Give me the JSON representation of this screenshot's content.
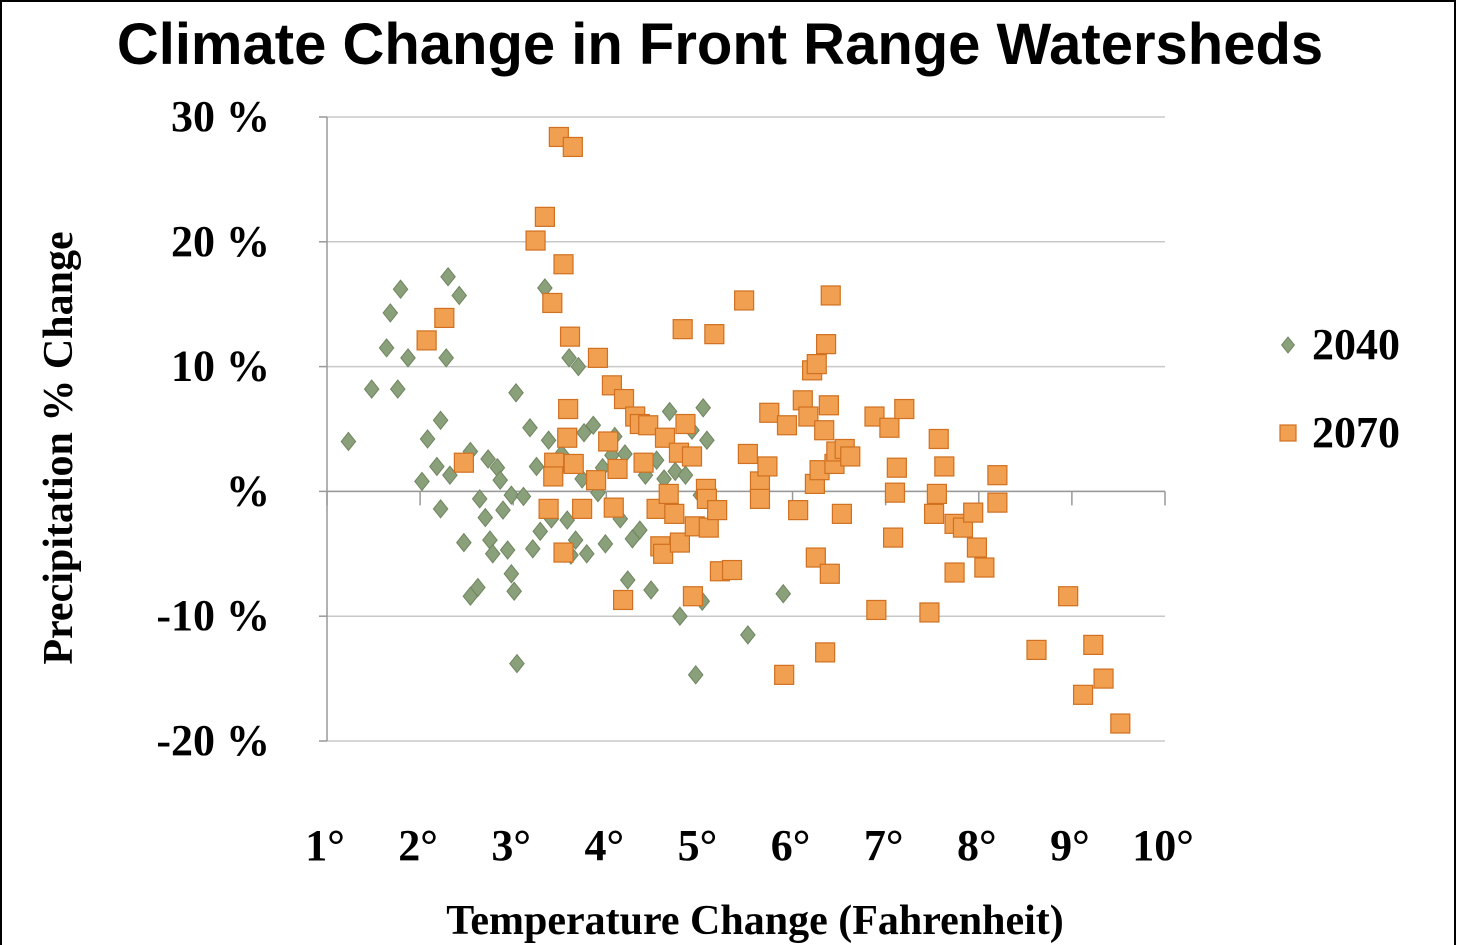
{
  "chart_data": {
    "type": "scatter",
    "title": "Climate Change in Front Range Watersheds",
    "x_label": "Temperature Change (Fahrenheit)",
    "y_label": "Precipitation % Change",
    "xlim": [
      1,
      10
    ],
    "ylim": [
      -20,
      30
    ],
    "xticks": [
      {
        "value": 1,
        "label": "1°"
      },
      {
        "value": 2,
        "label": "2°"
      },
      {
        "value": 3,
        "label": "3°"
      },
      {
        "value": 4,
        "label": "4°"
      },
      {
        "value": 5,
        "label": "5°"
      },
      {
        "value": 6,
        "label": "6°"
      },
      {
        "value": 7,
        "label": "7°"
      },
      {
        "value": 8,
        "label": "8°"
      },
      {
        "value": 9,
        "label": "9°"
      },
      {
        "value": 10,
        "label": "10°"
      }
    ],
    "yticks": [
      {
        "value": 30,
        "label": "30 %"
      },
      {
        "value": 20,
        "label": "20 %"
      },
      {
        "value": 10,
        "label": "10 %"
      },
      {
        "value": 0,
        "label": "%"
      },
      {
        "value": -10,
        "label": "-10 %"
      },
      {
        "value": -20,
        "label": "-20 %"
      }
    ],
    "grid": true,
    "legend": "right",
    "series": [
      {
        "name": "2040",
        "color": "#8aa07a",
        "marker": "diamond",
        "x": [
          1.23,
          1.48,
          1.68,
          1.64,
          1.76,
          1.79,
          1.87,
          2.02,
          2.08,
          2.18,
          2.22,
          2.22,
          2.28,
          2.3,
          2.42,
          2.32,
          2.47,
          2.54,
          2.54,
          2.62,
          2.64,
          2.7,
          2.73,
          2.75,
          2.78,
          2.83,
          2.86,
          2.89,
          2.94,
          2.98,
          2.98,
          3.01,
          3.03,
          3.04,
          3.11,
          3.18,
          3.21,
          3.25,
          3.29,
          3.34,
          3.38,
          3.41,
          3.47,
          3.52,
          3.58,
          3.6,
          3.62,
          3.67,
          3.7,
          3.74,
          3.76,
          3.79,
          3.86,
          3.91,
          3.96,
          3.99,
          4.06,
          4.09,
          4.15,
          4.2,
          4.23,
          4.28,
          4.36,
          4.42,
          4.48,
          4.54,
          4.62,
          4.68,
          4.74,
          4.79,
          4.85,
          4.92,
          4.96,
          5.01,
          5.03,
          5.04,
          5.52,
          5.9,
          5.08
        ],
        "values": [
          4.0,
          8.2,
          14.3,
          11.5,
          8.2,
          16.2,
          10.7,
          0.8,
          4.2,
          2.0,
          5.7,
          -1.4,
          10.7,
          17.2,
          15.7,
          1.3,
          -4.1,
          3.2,
          -8.4,
          -7.7,
          -0.6,
          -2.1,
          2.6,
          -3.9,
          -5.0,
          1.9,
          0.9,
          -1.5,
          -4.7,
          -0.3,
          -6.6,
          -8.0,
          7.9,
          -13.8,
          -0.4,
          5.1,
          -4.6,
          2.0,
          -3.2,
          16.3,
          4.1,
          -2.2,
          1.7,
          3.0,
          -2.3,
          10.7,
          -5.1,
          -3.9,
          10.0,
          1.0,
          4.7,
          -5.0,
          5.3,
          -0.1,
          1.9,
          -4.2,
          2.9,
          4.4,
          -2.2,
          3.0,
          -7.1,
          -3.8,
          -3.1,
          1.3,
          -7.9,
          2.5,
          1.0,
          6.4,
          1.6,
          -10.0,
          1.3,
          4.9,
          -14.7,
          -0.3,
          -8.8,
          6.7,
          -11.5,
          -8.2,
          4.1
        ]
      },
      {
        "name": "2070",
        "color": "#f0a050",
        "marker": "square",
        "x": [
          2.07,
          2.26,
          2.47,
          3.24,
          3.34,
          3.49,
          3.64,
          3.42,
          3.54,
          3.61,
          3.59,
          3.58,
          3.44,
          3.43,
          3.38,
          3.54,
          3.65,
          3.74,
          3.91,
          3.89,
          4.02,
          4.06,
          4.12,
          4.08,
          4.18,
          4.19,
          4.31,
          4.36,
          4.4,
          4.45,
          4.54,
          4.58,
          4.61,
          4.63,
          4.67,
          4.73,
          4.78,
          4.82,
          4.79,
          4.85,
          4.92,
          4.93,
          4.95,
          5.07,
          5.08,
          5.1,
          5.16,
          5.19,
          5.22,
          5.35,
          5.48,
          5.52,
          5.65,
          5.65,
          5.73,
          5.75,
          5.91,
          5.94,
          6.06,
          6.11,
          6.17,
          6.21,
          6.24,
          6.25,
          6.26,
          6.29,
          6.34,
          6.35,
          6.36,
          6.39,
          6.4,
          6.41,
          6.45,
          6.47,
          6.53,
          6.56,
          6.62,
          6.88,
          6.9,
          7.04,
          7.08,
          7.1,
          7.12,
          7.2,
          7.47,
          7.52,
          7.55,
          7.57,
          7.63,
          7.74,
          7.74,
          7.83,
          7.94,
          7.98,
          8.06,
          8.2,
          8.2,
          8.62,
          8.96,
          9.12,
          9.23,
          9.34,
          9.52
        ],
        "values": [
          12.1,
          13.9,
          2.3,
          20.1,
          22.0,
          28.4,
          27.6,
          15.1,
          18.2,
          12.4,
          6.6,
          4.3,
          2.3,
          1.2,
          -1.4,
          -4.9,
          2.2,
          -1.4,
          10.7,
          0.9,
          4.0,
          8.5,
          1.8,
          -1.3,
          -8.7,
          7.4,
          6.0,
          5.4,
          2.3,
          5.3,
          -1.4,
          -4.4,
          -5.0,
          4.3,
          -0.2,
          -1.8,
          3.1,
          13.0,
          -4.1,
          5.4,
          2.8,
          -8.4,
          -2.8,
          0.2,
          -0.6,
          -2.9,
          12.6,
          -1.5,
          -6.4,
          -6.3,
          15.3,
          3.0,
          0.8,
          -0.6,
          2.0,
          6.3,
          -14.7,
          5.3,
          -1.5,
          7.3,
          6.0,
          9.7,
          0.6,
          -5.3,
          10.2,
          1.7,
          4.9,
          -12.9,
          11.8,
          6.9,
          -6.6,
          15.7,
          2.2,
          3.2,
          -1.8,
          3.4,
          2.8,
          6.0,
          -9.5,
          5.1,
          -3.7,
          -0.1,
          1.9,
          6.6,
          -9.7,
          -1.8,
          -0.2,
          4.2,
          2.0,
          -2.6,
          -6.5,
          -2.9,
          -1.7,
          -4.5,
          -6.1,
          -0.9,
          1.3,
          -12.7,
          -8.4,
          -16.3,
          -12.3,
          -15.0,
          -18.6
        ]
      }
    ]
  }
}
